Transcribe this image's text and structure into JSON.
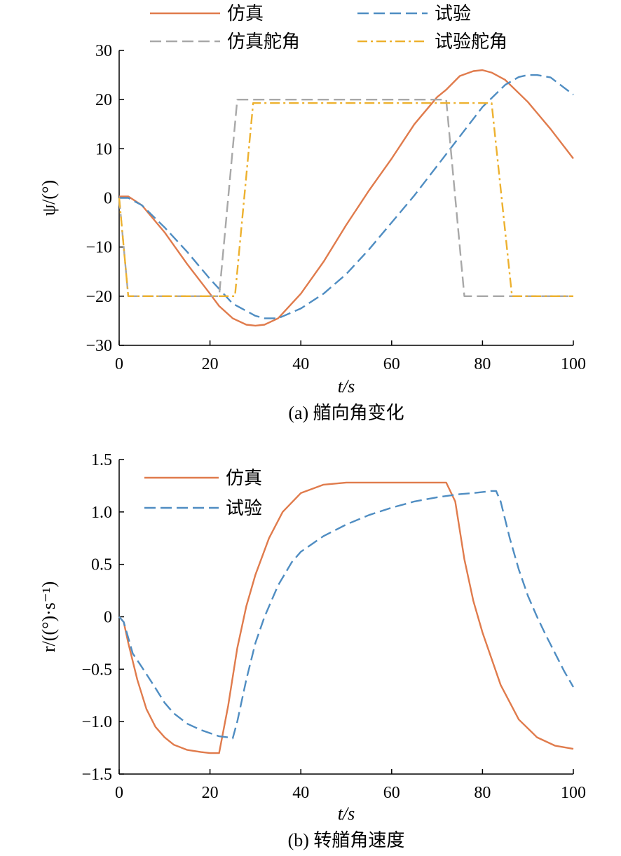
{
  "chart_data": [
    {
      "type": "line",
      "caption": "(a) 艏向角变化",
      "xlabel": "t/s",
      "ylabel": "ψ/(°)",
      "xlim": [
        0,
        100
      ],
      "ylim": [
        -30,
        30
      ],
      "xticks": [
        0,
        20,
        40,
        60,
        80,
        100
      ],
      "yticks": [
        -30,
        -20,
        -10,
        0,
        10,
        20,
        30
      ],
      "xtick_labels": [
        "0",
        "20",
        "40",
        "60",
        "80",
        "100"
      ],
      "ytick_labels": [
        "−30",
        "−20",
        "−10",
        "0",
        "10",
        "20",
        "30"
      ],
      "grid": false,
      "legend_position": "top",
      "series": [
        {
          "name": "仿真",
          "color": "#E07B4C",
          "style": "solid",
          "x": [
            0,
            2,
            5,
            10,
            15,
            20,
            22,
            25,
            28,
            30,
            32,
            35,
            40,
            45,
            50,
            55,
            60,
            65,
            70,
            72,
            75,
            78,
            80,
            82,
            85,
            90,
            95,
            100
          ],
          "y": [
            0.3,
            0.3,
            -1.5,
            -7,
            -13.5,
            -19.5,
            -22,
            -24.5,
            -25.8,
            -26,
            -25.8,
            -24.5,
            -19.5,
            -13,
            -5.5,
            1.5,
            8,
            15,
            20.5,
            22,
            24.8,
            25.8,
            26,
            25.5,
            24,
            19.5,
            14,
            8
          ]
        },
        {
          "name": "试验",
          "color": "#4F8DC2",
          "style": "dash",
          "x": [
            0,
            2,
            5,
            10,
            15,
            20,
            25,
            30,
            32,
            35,
            40,
            45,
            50,
            55,
            60,
            65,
            70,
            75,
            80,
            85,
            88,
            90,
            92,
            95,
            100
          ],
          "y": [
            0,
            0,
            -1.5,
            -6,
            -11,
            -16.5,
            -21.5,
            -24,
            -24.5,
            -24.5,
            -22.5,
            -19.5,
            -15.5,
            -10.5,
            -5,
            0.5,
            6.5,
            12.5,
            18.5,
            23,
            24.6,
            25,
            25,
            24.5,
            21
          ]
        },
        {
          "name": "仿真舵角",
          "color": "#A8A8A8",
          "style": "dash",
          "x": [
            0,
            2,
            22,
            26,
            72,
            76,
            100
          ],
          "y": [
            0,
            -20,
            -20,
            20,
            20,
            -20,
            -20
          ]
        },
        {
          "name": "试验舵角",
          "color": "#EDB12F",
          "style": "dashdot",
          "x": [
            0,
            2,
            25.5,
            29.5,
            82,
            86.5,
            100
          ],
          "y": [
            0,
            -20,
            -20,
            19.3,
            19.3,
            -20,
            -20
          ]
        }
      ]
    },
    {
      "type": "line",
      "caption": "(b) 转艏角速度",
      "xlabel": "t/s",
      "ylabel": "r/((°)·s⁻¹)",
      "xlim": [
        0,
        100
      ],
      "ylim": [
        -1.5,
        1.5
      ],
      "xticks": [
        0,
        20,
        40,
        60,
        80,
        100
      ],
      "yticks": [
        -1.5,
        -1.0,
        -0.5,
        0,
        0.5,
        1.0,
        1.5
      ],
      "xtick_labels": [
        "0",
        "20",
        "40",
        "60",
        "80",
        "100"
      ],
      "ytick_labels": [
        "−1.5",
        "−1.0",
        "−0.5",
        "0",
        "0.5",
        "1.0",
        "1.5"
      ],
      "grid": false,
      "legend_position": "top-left",
      "series": [
        {
          "name": "仿真",
          "color": "#E07B4C",
          "style": "solid",
          "x": [
            0,
            1,
            2,
            4,
            6,
            8,
            10,
            12,
            15,
            18,
            20,
            22,
            24,
            26,
            28,
            30,
            33,
            36,
            40,
            45,
            50,
            55,
            60,
            65,
            70,
            72,
            74,
            76,
            78,
            80,
            84,
            88,
            92,
            96,
            100
          ],
          "y": [
            0,
            -0.05,
            -0.25,
            -0.6,
            -0.88,
            -1.05,
            -1.15,
            -1.22,
            -1.27,
            -1.29,
            -1.3,
            -1.3,
            -0.85,
            -0.3,
            0.1,
            0.4,
            0.75,
            1.0,
            1.18,
            1.26,
            1.28,
            1.28,
            1.28,
            1.28,
            1.28,
            1.28,
            1.1,
            0.55,
            0.15,
            -0.15,
            -0.65,
            -0.98,
            -1.15,
            -1.23,
            -1.26
          ]
        },
        {
          "name": "试验",
          "color": "#4F8DC2",
          "style": "dash",
          "x": [
            0,
            1,
            2,
            3,
            5,
            8,
            10,
            12,
            15,
            18,
            20,
            22,
            24,
            25,
            26,
            28,
            30,
            32,
            35,
            38,
            40,
            45,
            50,
            55,
            60,
            65,
            70,
            75,
            78,
            80,
            82,
            83,
            84,
            86,
            88,
            90,
            92,
            94,
            96,
            98,
            100
          ],
          "y": [
            0,
            -0.05,
            -0.2,
            -0.35,
            -0.48,
            -0.68,
            -0.82,
            -0.92,
            -1.02,
            -1.08,
            -1.11,
            -1.14,
            -1.15,
            -1.16,
            -1.0,
            -0.6,
            -0.25,
            0.0,
            0.3,
            0.52,
            0.62,
            0.77,
            0.88,
            0.97,
            1.04,
            1.1,
            1.14,
            1.17,
            1.18,
            1.19,
            1.2,
            1.2,
            1.1,
            0.75,
            0.45,
            0.2,
            0.0,
            -0.18,
            -0.35,
            -0.52,
            -0.67
          ]
        }
      ]
    }
  ]
}
